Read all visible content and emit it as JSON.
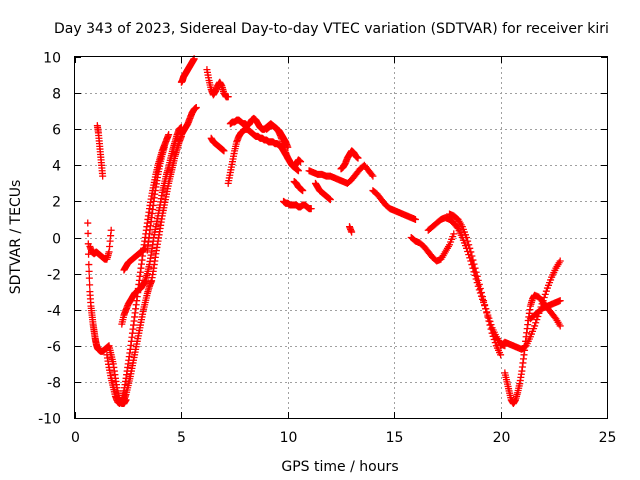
{
  "chart_data": {
    "type": "scatter",
    "title": "Day 343 of 2023, Sidereal Day-to-day VTEC variation (SDTVAR) for receiver kiri",
    "xlabel": "GPS time / hours",
    "ylabel": "SDTVAR / TECUs",
    "xlim": [
      0,
      25
    ],
    "ylim": [
      -10,
      10
    ],
    "xticks": [
      "0",
      "5",
      "10",
      "15",
      "20",
      "25"
    ],
    "yticks": [
      "-10",
      "-8",
      "-6",
      "-4",
      "-2",
      "0",
      "2",
      "4",
      "6",
      "8",
      "10"
    ],
    "grid": true,
    "marker": "+",
    "color": "#ff0000",
    "series": [
      {
        "x": [
          0.6,
          0.65,
          0.7,
          0.75,
          0.8,
          0.85,
          0.9,
          0.95,
          1.0,
          1.05,
          1.1,
          1.2,
          1.3,
          1.4,
          1.5,
          1.6,
          1.7,
          1.8,
          1.9,
          2.0,
          2.1,
          2.2,
          2.3,
          2.4
        ],
        "y": [
          0.8,
          -1.5,
          -3.0,
          -3.8,
          -4.3,
          -4.8,
          -5.2,
          -5.6,
          -5.9,
          -6.1,
          -6.2,
          -6.3,
          -6.3,
          -6.2,
          -6.1,
          -6.0,
          -6.5,
          -7.0,
          -7.8,
          -8.5,
          -9.0,
          -9.2,
          -9.2,
          -9.0
        ]
      },
      {
        "x": [
          0.7,
          0.8,
          0.9,
          1.0,
          1.1,
          1.2,
          1.3,
          1.4,
          1.5,
          1.6,
          1.7
        ],
        "y": [
          -0.5,
          -0.8,
          -0.9,
          -0.8,
          -0.9,
          -1.0,
          -1.1,
          -1.2,
          -1.2,
          -0.8,
          0.4
        ]
      },
      {
        "x": [
          1.05,
          1.1,
          1.15,
          1.2,
          1.25,
          1.3
        ],
        "y": [
          6.2,
          5.8,
          5.2,
          4.6,
          4.0,
          3.4
        ]
      },
      {
        "x": [
          1.5,
          1.6,
          1.7,
          1.8,
          1.9,
          2.0,
          2.1,
          2.2,
          2.3,
          2.4,
          2.5,
          2.6,
          2.7,
          2.8,
          2.9,
          3.0,
          3.1,
          3.2,
          3.3,
          3.4,
          3.5,
          3.6,
          3.7,
          3.8,
          3.9,
          4.0,
          4.1,
          4.2,
          4.3,
          4.4
        ],
        "y": [
          -6.5,
          -7.2,
          -7.8,
          -8.3,
          -8.8,
          -9.1,
          -9.2,
          -9.0,
          -8.5,
          -7.8,
          -7.0,
          -6.2,
          -5.3,
          -4.4,
          -3.5,
          -2.6,
          -1.7,
          -0.8,
          0.0,
          0.8,
          1.6,
          2.3,
          2.9,
          3.5,
          4.0,
          4.4,
          4.8,
          5.1,
          5.4,
          5.7
        ]
      },
      {
        "x": [
          2.2,
          2.3,
          2.4,
          2.5,
          2.6,
          2.7,
          2.8,
          2.9,
          3.0,
          3.1,
          3.2,
          3.3,
          3.4,
          3.5,
          3.6,
          3.7,
          3.8,
          3.9,
          4.0,
          4.1,
          4.2,
          4.3,
          4.4,
          4.5,
          4.6,
          4.7,
          4.8,
          4.9,
          5.0
        ],
        "y": [
          -4.8,
          -4.3,
          -4.0,
          -3.7,
          -3.5,
          -3.3,
          -3.1,
          -3.0,
          -2.9,
          -2.8,
          -2.6,
          -2.4,
          -2.0,
          -1.5,
          -0.8,
          0.0,
          0.6,
          1.2,
          1.8,
          2.5,
          3.0,
          3.5,
          3.9,
          4.4,
          4.9,
          5.3,
          5.7,
          6.0,
          6.1
        ]
      },
      {
        "x": [
          2.3,
          2.4,
          2.5,
          2.6,
          2.7,
          2.8,
          2.9,
          3.0,
          3.1,
          3.2,
          3.3,
          3.4,
          3.5,
          3.6,
          3.7,
          3.8,
          3.9,
          4.0,
          4.1,
          4.2,
          4.3,
          4.4,
          4.5,
          4.6,
          4.7,
          4.8,
          4.9,
          5.0
        ],
        "y": [
          -9.0,
          -8.7,
          -8.2,
          -7.7,
          -7.1,
          -6.5,
          -5.9,
          -5.3,
          -4.7,
          -4.1,
          -3.6,
          -3.1,
          -2.7,
          -2.4,
          -1.7,
          -0.9,
          -0.2,
          0.5,
          1.2,
          1.8,
          2.4,
          3.0,
          3.5,
          4.0,
          4.5,
          4.9,
          5.3,
          5.6
        ]
      },
      {
        "x": [
          3.4,
          3.5,
          3.6,
          3.7,
          3.8,
          3.9,
          4.0,
          4.1,
          4.2
        ],
        "y": [
          -0.7,
          0.2,
          1.1,
          2.0,
          2.8,
          3.5,
          4.1,
          4.6,
          5.0
        ]
      },
      {
        "x": [
          2.3,
          2.4,
          2.5,
          2.6,
          2.7,
          2.8,
          2.9,
          3.0,
          3.1,
          3.2,
          3.3
        ],
        "y": [
          -1.8,
          -1.6,
          -1.4,
          -1.3,
          -1.2,
          -1.1,
          -1.0,
          -0.9,
          -0.8,
          -0.7,
          -0.6
        ]
      },
      {
        "x": [
          5.0,
          5.05,
          5.1,
          5.15,
          5.2,
          5.25,
          5.3,
          5.35,
          5.4,
          5.45,
          5.5,
          5.55,
          5.6
        ],
        "y": [
          8.6,
          8.7,
          8.9,
          9.0,
          9.1,
          9.2,
          9.3,
          9.4,
          9.5,
          9.6,
          9.7,
          9.8,
          9.9
        ]
      },
      {
        "x": [
          5.0,
          5.1,
          5.2,
          5.3,
          5.4,
          5.5,
          5.6,
          5.7
        ],
        "y": [
          5.7,
          5.9,
          6.1,
          6.3,
          6.6,
          6.9,
          7.1,
          7.2
        ]
      },
      {
        "x": [
          6.2,
          6.3,
          6.4,
          6.5,
          6.6,
          6.7,
          6.8,
          6.9,
          7.0,
          7.1,
          7.2
        ],
        "y": [
          9.3,
          8.7,
          8.2,
          7.9,
          8.1,
          8.4,
          8.6,
          8.4,
          8.0,
          7.8,
          7.8
        ]
      },
      {
        "x": [
          6.4,
          6.5,
          6.6,
          6.7,
          6.8,
          6.9,
          7.0
        ],
        "y": [
          5.5,
          5.3,
          5.2,
          5.1,
          5.0,
          4.9,
          4.8
        ]
      },
      {
        "x": [
          7.2,
          7.3,
          7.4,
          7.5,
          7.6,
          7.7,
          7.8,
          7.9,
          8.0,
          8.1,
          8.2,
          8.3,
          8.4,
          8.5,
          8.6,
          8.7,
          8.8,
          8.9,
          9.0,
          9.1,
          9.2,
          9.3,
          9.4,
          9.5,
          9.6,
          9.7,
          9.8,
          9.9,
          10.0,
          10.1,
          10.2,
          10.3,
          10.4,
          10.5
        ],
        "y": [
          3.0,
          3.6,
          4.2,
          4.8,
          5.3,
          5.6,
          5.8,
          5.9,
          6.0,
          6.0,
          5.9,
          5.8,
          5.7,
          5.6,
          5.6,
          5.5,
          5.5,
          5.4,
          5.4,
          5.3,
          5.3,
          5.3,
          5.2,
          5.2,
          5.1,
          5.0,
          4.8,
          4.6,
          4.4,
          4.2,
          4.0,
          3.9,
          3.8,
          3.7
        ]
      },
      {
        "x": [
          7.3,
          7.4,
          7.5,
          7.6,
          7.7,
          7.8,
          7.9,
          8.0,
          8.1,
          8.2,
          8.3,
          8.4,
          8.5,
          8.6,
          8.7,
          8.8,
          8.9,
          9.0,
          9.1,
          9.2,
          9.3,
          9.4,
          9.5,
          9.6,
          9.7,
          9.8,
          9.9,
          10.0
        ],
        "y": [
          6.3,
          6.4,
          6.4,
          6.5,
          6.5,
          6.4,
          6.3,
          6.3,
          6.2,
          6.3,
          6.5,
          6.6,
          6.5,
          6.3,
          6.1,
          6.0,
          6.0,
          6.1,
          6.2,
          6.3,
          6.2,
          6.1,
          6.0,
          5.9,
          5.7,
          5.5,
          5.3,
          5.0
        ]
      },
      {
        "x": [
          9.0,
          9.1,
          9.2,
          9.3,
          9.4,
          9.5,
          9.6,
          9.7,
          9.8,
          9.9,
          10.0,
          10.1,
          10.2,
          10.3,
          10.4,
          10.5,
          10.6
        ],
        "y": [
          6.0,
          6.1,
          6.2,
          6.2,
          6.1,
          6.0,
          5.8,
          5.5,
          5.1,
          4.7,
          4.4,
          4.2,
          4.0,
          3.9,
          4.1,
          4.3,
          4.2
        ]
      },
      {
        "x": [
          9.8,
          9.9,
          10.0,
          10.1,
          10.2,
          10.3,
          10.4,
          10.5,
          10.6,
          10.7,
          10.8,
          10.9,
          11.0,
          11.1
        ],
        "y": [
          2.0,
          1.9,
          1.9,
          1.8,
          1.8,
          1.8,
          1.8,
          1.7,
          1.7,
          1.8,
          1.8,
          1.7,
          1.6,
          1.6
        ]
      },
      {
        "x": [
          10.3,
          10.4,
          10.5,
          10.6,
          10.7
        ],
        "y": [
          3.1,
          3.0,
          2.8,
          2.7,
          2.6
        ]
      },
      {
        "x": [
          11.0,
          11.2,
          11.4,
          11.6,
          11.8,
          12.0,
          12.2,
          12.4,
          12.6,
          12.8,
          13.0,
          13.2,
          13.4,
          13.6,
          13.8,
          14.0
        ],
        "y": [
          3.7,
          3.6,
          3.5,
          3.5,
          3.4,
          3.4,
          3.3,
          3.2,
          3.1,
          3.0,
          3.2,
          3.5,
          3.8,
          4.0,
          3.7,
          3.4
        ]
      },
      {
        "x": [
          11.3,
          11.4,
          11.5,
          11.6,
          11.7,
          11.8,
          11.9,
          12.0
        ],
        "y": [
          3.0,
          2.8,
          2.6,
          2.5,
          2.4,
          2.3,
          2.2,
          2.1
        ]
      },
      {
        "x": [
          12.5,
          12.6,
          12.7,
          12.8,
          12.9,
          13.0,
          13.1,
          13.2,
          13.3
        ],
        "y": [
          3.8,
          3.9,
          4.1,
          4.4,
          4.6,
          4.8,
          4.7,
          4.5,
          4.4
        ]
      },
      {
        "x": [
          12.9,
          13.0
        ],
        "y": [
          0.6,
          0.3
        ]
      },
      {
        "x": [
          14.0,
          14.2,
          14.4,
          14.6,
          14.8,
          15.0,
          15.2,
          15.4,
          15.6,
          15.8,
          16.0
        ],
        "y": [
          2.6,
          2.4,
          2.1,
          1.8,
          1.6,
          1.5,
          1.4,
          1.3,
          1.2,
          1.1,
          1.0
        ]
      },
      {
        "x": [
          15.8,
          16.0,
          16.2,
          16.4,
          16.6,
          16.8,
          17.0,
          17.2,
          17.4,
          17.6,
          17.8
        ],
        "y": [
          0.0,
          -0.2,
          -0.3,
          -0.5,
          -0.8,
          -1.1,
          -1.3,
          -1.2,
          -0.8,
          -0.4,
          0.2
        ]
      },
      {
        "x": [
          16.6,
          16.8,
          17.0,
          17.2,
          17.4,
          17.6,
          17.8,
          18.0,
          18.2,
          18.4,
          18.6,
          18.8,
          19.0,
          19.2,
          19.4,
          19.6,
          19.8,
          20.0,
          20.2
        ],
        "y": [
          0.4,
          0.6,
          0.8,
          1.0,
          1.1,
          1.0,
          0.8,
          0.5,
          0.0,
          -0.6,
          -1.3,
          -2.1,
          -2.9,
          -3.6,
          -4.3,
          -5.0,
          -5.5,
          -5.9,
          -6.0
        ]
      },
      {
        "x": [
          17.6,
          17.8,
          18.0,
          18.2,
          18.4,
          18.6,
          18.8,
          19.0,
          19.2,
          19.4,
          19.6,
          19.8,
          20.0
        ],
        "y": [
          1.3,
          1.2,
          1.0,
          0.6,
          0.0,
          -0.8,
          -1.7,
          -2.6,
          -3.5,
          -4.4,
          -5.3,
          -6.0,
          -6.5
        ]
      },
      {
        "x": [
          20.0,
          20.2,
          20.4,
          20.6,
          20.8,
          21.0,
          21.2,
          21.4,
          21.6,
          21.8,
          22.0,
          22.2,
          22.4,
          22.6,
          22.8
        ],
        "y": [
          -6.0,
          -5.8,
          -5.9,
          -6.0,
          -6.1,
          -6.2,
          -6.0,
          -5.5,
          -4.9,
          -4.2,
          -3.5,
          -2.8,
          -2.2,
          -1.7,
          -1.3
        ]
      },
      {
        "x": [
          20.2,
          20.3,
          20.4,
          20.5,
          20.6,
          20.7,
          20.8,
          20.9,
          21.0,
          21.1,
          21.2,
          21.3,
          21.4,
          21.5,
          21.6,
          21.8,
          22.0,
          22.2,
          22.4,
          22.6,
          22.8
        ],
        "y": [
          -7.5,
          -8.0,
          -8.5,
          -9.0,
          -9.2,
          -9.0,
          -8.6,
          -8.1,
          -7.4,
          -6.5,
          -5.5,
          -4.6,
          -3.8,
          -3.4,
          -3.2,
          -3.3,
          -3.6,
          -3.9,
          -4.2,
          -4.5,
          -4.9
        ]
      },
      {
        "x": [
          21.4,
          21.6,
          21.8,
          22.0,
          22.2,
          22.4,
          22.6,
          22.8
        ],
        "y": [
          -4.5,
          -4.3,
          -4.1,
          -3.9,
          -3.8,
          -3.7,
          -3.6,
          -3.5
        ]
      }
    ]
  }
}
